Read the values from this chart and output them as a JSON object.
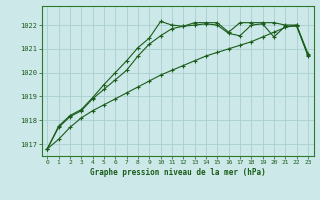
{
  "title": "Graphe pression niveau de la mer (hPa)",
  "bg_color": "#cce8e8",
  "grid_color": "#aacfcf",
  "line_color": "#1a5c1a",
  "spine_color": "#2d7a2d",
  "xlim": [
    -0.5,
    23.5
  ],
  "ylim": [
    1016.5,
    1022.8
  ],
  "yticks": [
    1017,
    1018,
    1019,
    1020,
    1021,
    1022
  ],
  "xticks": [
    0,
    1,
    2,
    3,
    4,
    5,
    6,
    7,
    8,
    9,
    10,
    11,
    12,
    13,
    14,
    15,
    16,
    17,
    18,
    19,
    20,
    21,
    22,
    23
  ],
  "series1": [
    1016.8,
    1017.2,
    1017.7,
    1018.1,
    1018.4,
    1018.65,
    1018.9,
    1019.15,
    1019.4,
    1019.65,
    1019.9,
    1020.1,
    1020.3,
    1020.5,
    1020.7,
    1020.85,
    1021.0,
    1021.15,
    1021.3,
    1021.5,
    1021.7,
    1021.9,
    1022.0,
    1020.7
  ],
  "series2": [
    1016.8,
    1017.7,
    1018.15,
    1018.4,
    1018.9,
    1019.3,
    1019.7,
    1020.1,
    1020.7,
    1021.2,
    1021.55,
    1021.85,
    1021.95,
    1022.0,
    1022.05,
    1022.0,
    1021.65,
    1021.55,
    1022.0,
    1022.05,
    1021.5,
    1021.95,
    1021.95,
    1020.75
  ],
  "series3": [
    1016.8,
    1017.75,
    1018.2,
    1018.45,
    1018.95,
    1019.5,
    1020.0,
    1020.5,
    1021.05,
    1021.45,
    1022.15,
    1022.0,
    1021.95,
    1022.1,
    1022.1,
    1022.1,
    1021.7,
    1022.1,
    1022.1,
    1022.1,
    1022.1,
    1022.0,
    1022.0,
    1020.8
  ]
}
